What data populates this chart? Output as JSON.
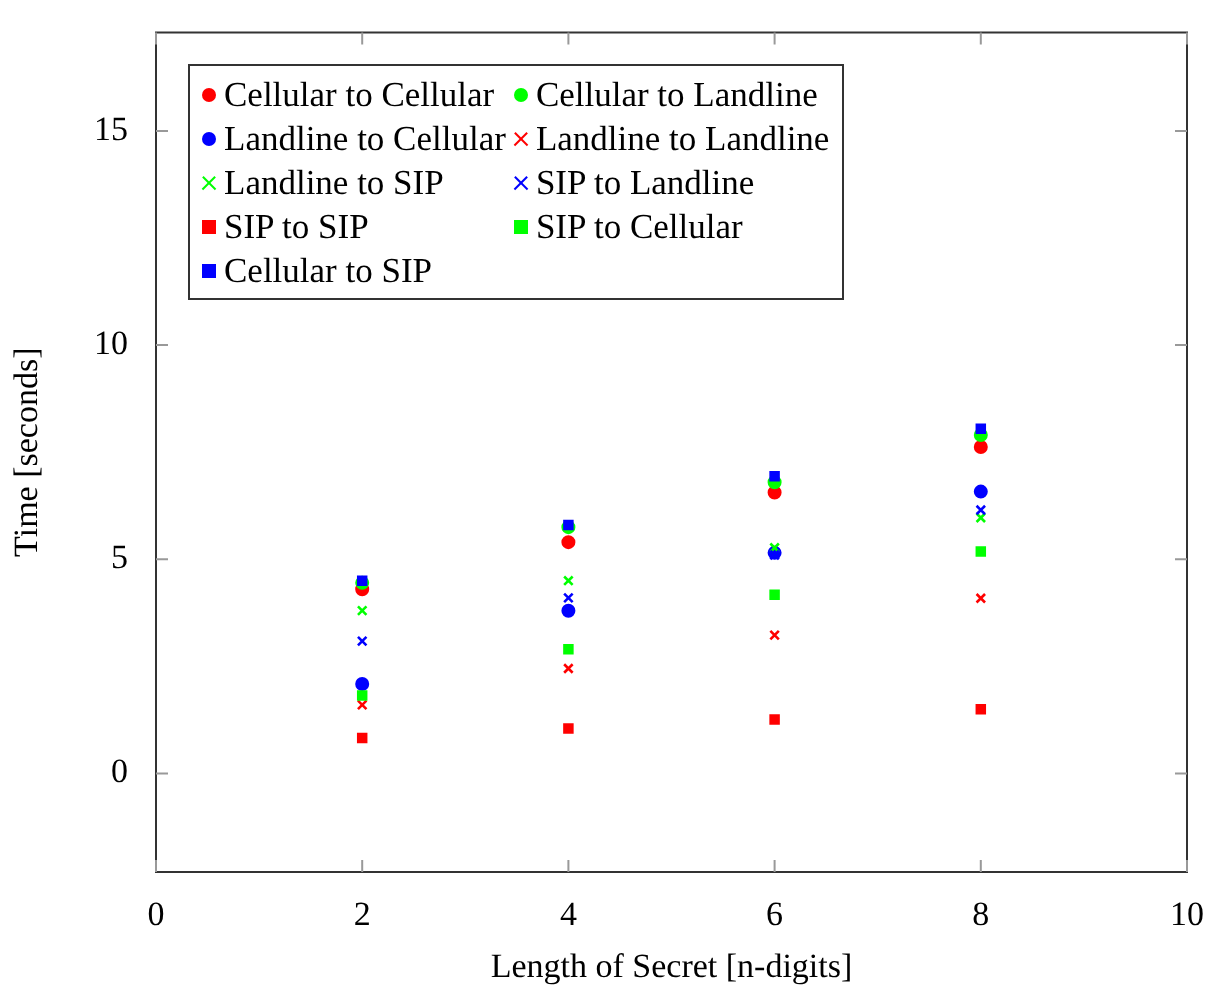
{
  "chart_data": {
    "type": "scatter",
    "xlabel": "Length of Secret [n-digits]",
    "ylabel": "Time [seconds]",
    "x": [
      2,
      4,
      6,
      8
    ],
    "xlim": [
      0,
      10
    ],
    "xticks": [
      0,
      2,
      4,
      6,
      8,
      10
    ],
    "ylim": [
      -2.3,
      17.3
    ],
    "yticks": [
      0,
      5,
      10,
      15
    ],
    "grid": false,
    "legend": "top left",
    "series": [
      {
        "name": "Cellular to Cellular",
        "color": "#ff0000",
        "marker": "circle",
        "values": [
          4.3,
          5.4,
          6.56,
          7.62
        ]
      },
      {
        "name": "Cellular to Landline",
        "color": "#00ff00",
        "marker": "circle",
        "values": [
          4.45,
          5.75,
          6.8,
          7.9
        ]
      },
      {
        "name": "Landline to Cellular",
        "color": "#0000ff",
        "marker": "circle",
        "values": [
          2.09,
          3.8,
          5.15,
          6.58
        ]
      },
      {
        "name": "Landline to Landline",
        "color": "#ff0000",
        "marker": "cross",
        "values": [
          1.6,
          2.45,
          3.23,
          4.09
        ]
      },
      {
        "name": "Landline to SIP",
        "color": "#00ff00",
        "marker": "cross",
        "values": [
          3.8,
          4.5,
          5.27,
          5.97
        ]
      },
      {
        "name": "SIP to Landline",
        "color": "#0000ff",
        "marker": "cross",
        "values": [
          3.09,
          4.1,
          5.1,
          6.15
        ]
      },
      {
        "name": "SIP to SIP",
        "color": "#ff0000",
        "marker": "square",
        "values": [
          0.83,
          1.05,
          1.26,
          1.5
        ]
      },
      {
        "name": "SIP to Cellular",
        "color": "#00ff00",
        "marker": "square",
        "values": [
          1.82,
          2.9,
          4.17,
          5.18
        ]
      },
      {
        "name": "Cellular to SIP",
        "color": "#0000ff",
        "marker": "square",
        "values": [
          4.5,
          5.8,
          6.94,
          8.05
        ]
      }
    ]
  }
}
